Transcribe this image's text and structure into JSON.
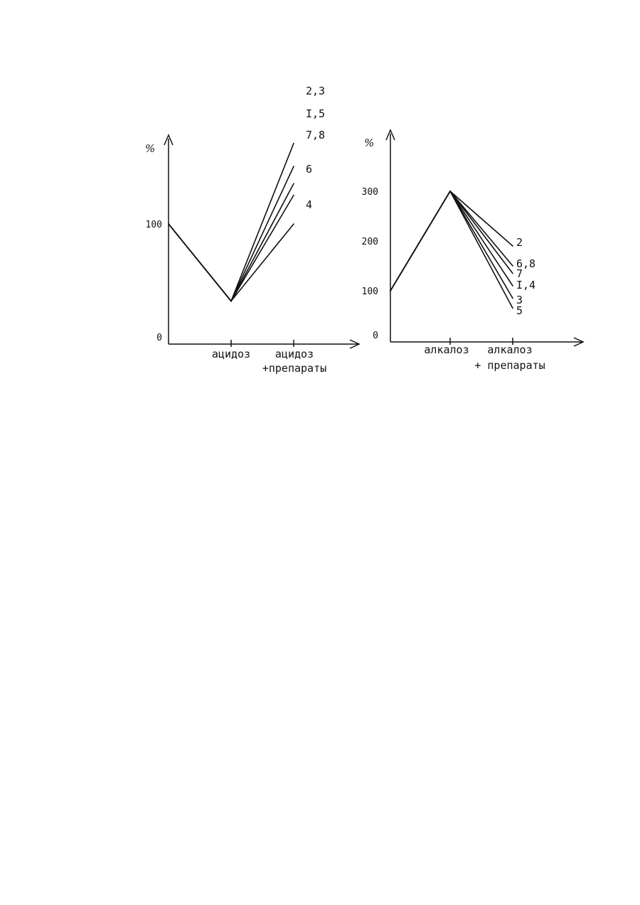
{
  "chart_data": [
    {
      "type": "line",
      "ylabel": "%",
      "categories": [
        "",
        "ацидоз",
        "ацидоз +препараты"
      ],
      "y_ticks": [
        0,
        100
      ],
      "ylim": [
        0,
        180
      ],
      "series": [
        {
          "name": "2,3",
          "values": [
            100,
            33,
            170
          ]
        },
        {
          "name": "I,5",
          "values": [
            100,
            33,
            150
          ]
        },
        {
          "name": "7,8",
          "values": [
            100,
            33,
            135
          ]
        },
        {
          "name": "6",
          "values": [
            100,
            33,
            125
          ]
        },
        {
          "name": "4",
          "values": [
            100,
            33,
            100
          ]
        }
      ]
    },
    {
      "type": "line",
      "ylabel": "%",
      "categories": [
        "",
        "алкалоз",
        "алкалоз + препараты"
      ],
      "y_ticks": [
        0,
        100,
        200,
        300
      ],
      "ylim": [
        0,
        400
      ],
      "series": [
        {
          "name": "2",
          "values": [
            100,
            300,
            190
          ]
        },
        {
          "name": "6,8",
          "values": [
            100,
            300,
            150
          ]
        },
        {
          "name": "7",
          "values": [
            100,
            300,
            135
          ]
        },
        {
          "name": "I,4",
          "values": [
            100,
            300,
            110
          ]
        },
        {
          "name": "3",
          "values": [
            100,
            300,
            85
          ]
        },
        {
          "name": "5",
          "values": [
            100,
            300,
            65
          ]
        }
      ]
    }
  ]
}
